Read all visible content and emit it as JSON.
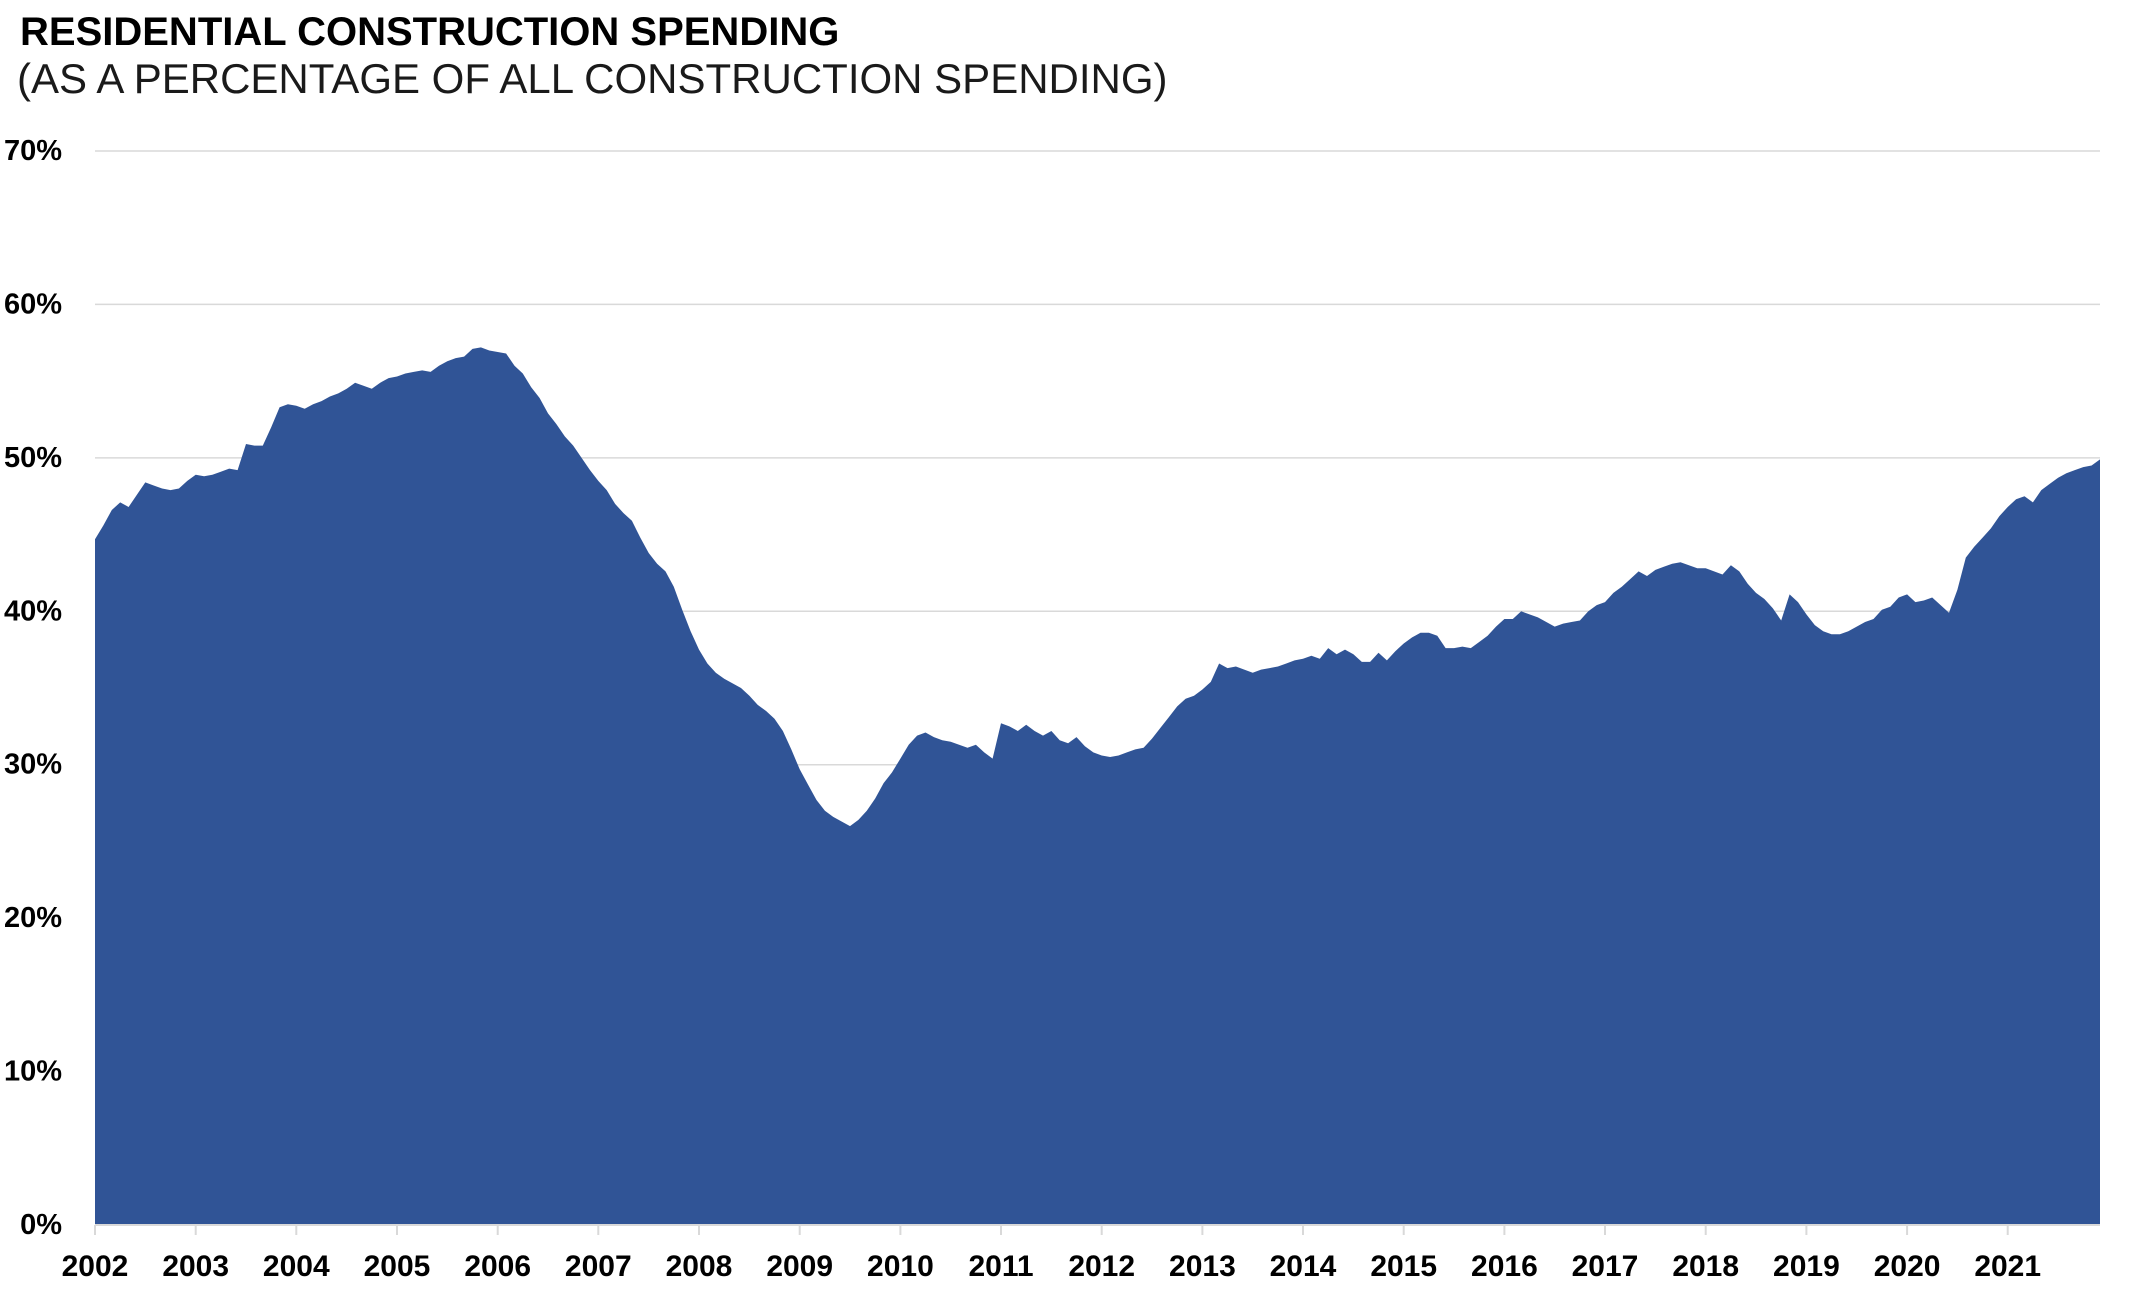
{
  "header": {
    "title": "RESIDENTIAL CONSTRUCTION SPENDING",
    "subtitle": "(AS A PERCENTAGE OF ALL CONSTRUCTION SPENDING)"
  },
  "colors": {
    "area_fill": "#305496",
    "gridline": "#d9d9d9",
    "axis_line": "#d9d9d9",
    "tick": "#d9d9d9",
    "text": "#000000"
  },
  "chart_data": {
    "type": "area",
    "title": "RESIDENTIAL CONSTRUCTION SPENDING (AS A PERCENTAGE OF ALL CONSTRUCTION SPENDING)",
    "x_unit": "month",
    "x_start": "2002-01",
    "x_end": "2021-12",
    "ylim": [
      0,
      70
    ],
    "grid": true,
    "legend": "none",
    "y_ticks": [
      {
        "value": 0,
        "label": "0%"
      },
      {
        "value": 10,
        "label": "10%"
      },
      {
        "value": 20,
        "label": "20%"
      },
      {
        "value": 30,
        "label": "30%"
      },
      {
        "value": 40,
        "label": "40%"
      },
      {
        "value": 50,
        "label": "50%"
      },
      {
        "value": 60,
        "label": "60%"
      },
      {
        "value": 70,
        "label": "70%"
      }
    ],
    "x_ticks": [
      "2002",
      "2003",
      "2004",
      "2005",
      "2006",
      "2007",
      "2008",
      "2009",
      "2010",
      "2011",
      "2012",
      "2013",
      "2014",
      "2015",
      "2016",
      "2017",
      "2018",
      "2019",
      "2020",
      "2021"
    ],
    "series": [
      {
        "name": "residential-share-of-total-construction-spending",
        "values": [
          44.7,
          45.6,
          46.6,
          47.1,
          46.8,
          47.6,
          48.4,
          48.2,
          48.0,
          47.9,
          48.0,
          48.5,
          48.9,
          48.8,
          48.9,
          49.1,
          49.3,
          49.2,
          50.9,
          50.8,
          50.8,
          52.0,
          53.3,
          53.5,
          53.4,
          53.2,
          53.5,
          53.7,
          54.0,
          54.2,
          54.5,
          54.9,
          54.7,
          54.5,
          54.9,
          55.2,
          55.3,
          55.5,
          55.6,
          55.7,
          55.6,
          56.0,
          56.3,
          56.5,
          56.6,
          57.1,
          57.2,
          57.0,
          56.9,
          56.8,
          56.0,
          55.5,
          54.6,
          53.9,
          52.9,
          52.2,
          51.4,
          50.8,
          50.0,
          49.2,
          48.5,
          47.9,
          47.0,
          46.4,
          45.9,
          44.8,
          43.8,
          43.1,
          42.6,
          41.6,
          40.1,
          38.7,
          37.5,
          36.6,
          36.0,
          35.6,
          35.3,
          35.0,
          34.5,
          33.9,
          33.5,
          33.0,
          32.2,
          31.0,
          29.7,
          28.7,
          27.7,
          27.0,
          26.6,
          26.3,
          26.0,
          26.4,
          27.0,
          27.8,
          28.8,
          29.5,
          30.4,
          31.3,
          31.9,
          32.1,
          31.8,
          31.6,
          31.5,
          31.3,
          31.1,
          31.3,
          30.8,
          30.4,
          32.7,
          32.5,
          32.2,
          32.6,
          32.2,
          31.9,
          32.2,
          31.6,
          31.4,
          31.8,
          31.2,
          30.8,
          30.6,
          30.5,
          30.6,
          30.8,
          31.0,
          31.1,
          31.7,
          32.4,
          33.1,
          33.8,
          34.3,
          34.5,
          34.9,
          35.4,
          36.6,
          36.3,
          36.4,
          36.2,
          36.0,
          36.2,
          36.3,
          36.4,
          36.6,
          36.8,
          36.9,
          37.1,
          36.9,
          37.6,
          37.2,
          37.5,
          37.2,
          36.7,
          36.7,
          37.3,
          36.8,
          37.4,
          37.9,
          38.3,
          38.6,
          38.6,
          38.4,
          37.6,
          37.6,
          37.7,
          37.6,
          38.0,
          38.4,
          39.0,
          39.5,
          39.5,
          40.0,
          39.8,
          39.6,
          39.3,
          39.0,
          39.2,
          39.3,
          39.4,
          40.0,
          40.4,
          40.6,
          41.2,
          41.6,
          42.1,
          42.6,
          42.3,
          42.7,
          42.9,
          43.1,
          43.2,
          43.0,
          42.8,
          42.8,
          42.6,
          42.4,
          43.0,
          42.6,
          41.8,
          41.2,
          40.8,
          40.2,
          39.4,
          41.1,
          40.6,
          39.8,
          39.1,
          38.7,
          38.5,
          38.5,
          38.7,
          39.0,
          39.3,
          39.5,
          40.1,
          40.3,
          40.9,
          41.1,
          40.6,
          40.7,
          40.9,
          40.4,
          39.9,
          41.4,
          43.5,
          44.2,
          44.8,
          45.4,
          46.2,
          46.8,
          47.3,
          47.5,
          47.1,
          47.9,
          48.3,
          48.7,
          49.0,
          49.2,
          49.4,
          49.5,
          49.9
        ]
      }
    ]
  }
}
